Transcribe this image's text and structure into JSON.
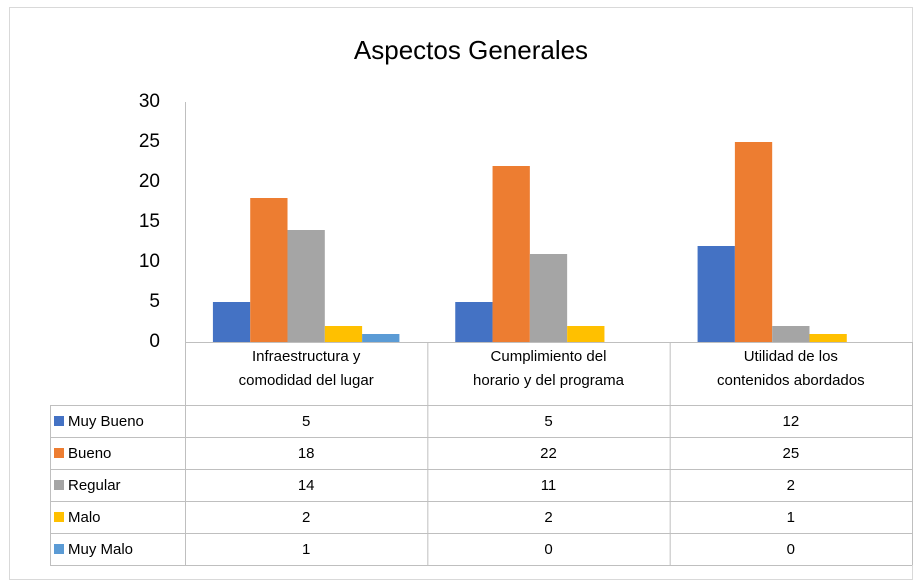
{
  "chart_data": {
    "type": "bar",
    "title": "Aspectos Generales",
    "categories": [
      "Infraestructura y\ncomodidad del lugar",
      "Cumplimiento del\nhorario y del programa",
      "Utilidad de los\ncontenidos abordados"
    ],
    "series": [
      {
        "name": "Muy Bueno",
        "color": "#4472c4",
        "values": [
          5,
          5,
          12
        ]
      },
      {
        "name": "Bueno",
        "color": "#ed7d31",
        "values": [
          18,
          22,
          25
        ]
      },
      {
        "name": "Regular",
        "color": "#a5a5a5",
        "values": [
          14,
          11,
          2
        ]
      },
      {
        "name": "Malo",
        "color": "#ffc000",
        "values": [
          2,
          2,
          1
        ]
      },
      {
        "name": "Muy Malo",
        "color": "#5b9bd5",
        "values": [
          1,
          0,
          0
        ]
      }
    ],
    "ylim": [
      0,
      30
    ],
    "yticks": [
      0,
      5,
      10,
      15,
      20,
      25,
      30
    ],
    "grid": false
  }
}
